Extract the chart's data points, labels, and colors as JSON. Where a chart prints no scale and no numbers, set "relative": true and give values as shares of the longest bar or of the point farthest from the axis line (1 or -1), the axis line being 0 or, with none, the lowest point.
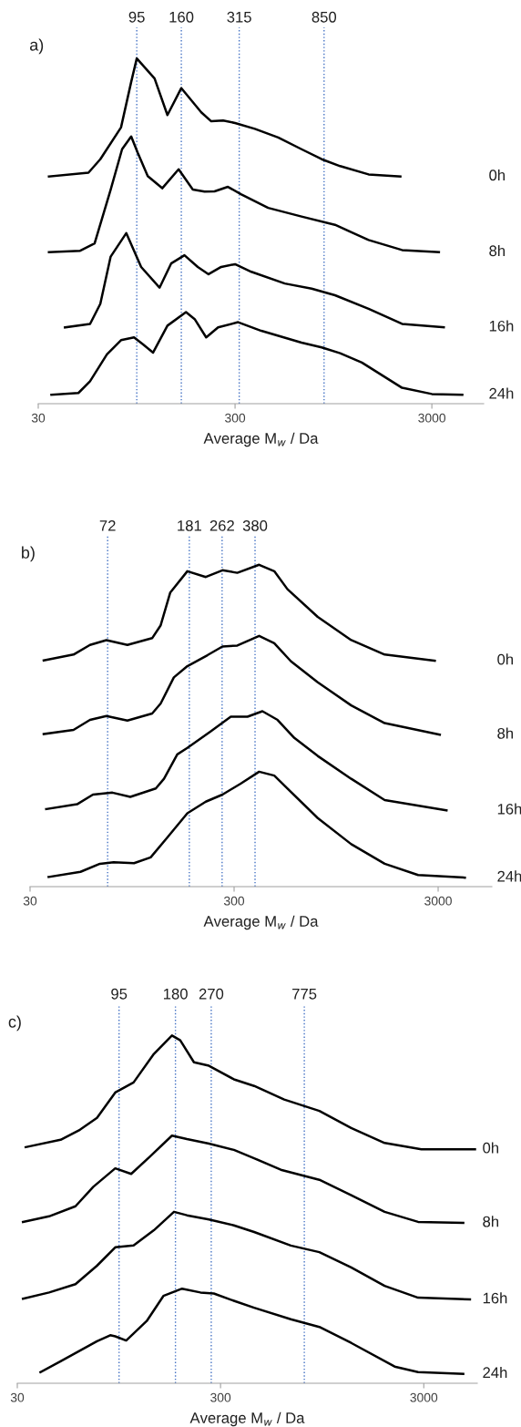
{
  "chart_data": [
    {
      "type": "line",
      "title": "a)",
      "xlabel": "Average M$_{w}$ / Da",
      "log": "x",
      "relative": true,
      "xlim": [
        30,
        5500
      ],
      "xticks": [
        30,
        300,
        3000
      ],
      "grid": false,
      "legend": false,
      "marker": "none",
      "line_style": "solid",
      "ref_lines": [
        {
          "axis": "x",
          "value": 95,
          "label": "95",
          "color": "#4472c4",
          "line_style": "dotted"
        },
        {
          "axis": "x",
          "value": 160,
          "label": "160",
          "color": "#4472c4",
          "line_style": "dotted"
        },
        {
          "axis": "x",
          "value": 315,
          "label": "315",
          "color": "#4472c4",
          "line_style": "dotted"
        },
        {
          "axis": "x",
          "value": 850,
          "label": "850",
          "color": "#4472c4",
          "line_style": "dotted"
        }
      ],
      "series": [
        {
          "name": "0h",
          "color": "#000000",
          "x": [
            34,
            54,
            62,
            79,
            89,
            95,
            117,
            136,
            160,
            202,
            227,
            261,
            300,
            378,
            497,
            653,
            827,
            1026,
            1431,
            2076
          ],
          "values": [
            0.658,
            0.669,
            0.708,
            0.8,
            0.932,
            1.0,
            0.942,
            0.836,
            0.914,
            0.844,
            0.818,
            0.82,
            0.813,
            0.796,
            0.771,
            0.737,
            0.708,
            0.688,
            0.664,
            0.658
          ]
        },
        {
          "name": "8h",
          "color": "#000000",
          "x": [
            34,
            49,
            58,
            70,
            80,
            89,
            96,
            108,
            128,
            155,
            183,
            210,
            236,
            276,
            323,
            442,
            653,
            966,
            1431,
            2118,
            3258
          ],
          "values": [
            0.439,
            0.443,
            0.464,
            0.62,
            0.737,
            0.774,
            0.727,
            0.659,
            0.624,
            0.679,
            0.62,
            0.614,
            0.615,
            0.628,
            0.606,
            0.567,
            0.542,
            0.518,
            0.474,
            0.445,
            0.439
          ]
        },
        {
          "name": "16h",
          "color": "#000000",
          "x": [
            41,
            55,
            62,
            70,
            84,
            100,
            124,
            142,
            166,
            194,
            220,
            255,
            300,
            363,
            537,
            735,
            966,
            1431,
            2118,
            3450
          ],
          "values": [
            0.221,
            0.231,
            0.289,
            0.426,
            0.494,
            0.396,
            0.336,
            0.406,
            0.43,
            0.396,
            0.375,
            0.396,
            0.404,
            0.382,
            0.348,
            0.333,
            0.314,
            0.275,
            0.231,
            0.221
          ]
        },
        {
          "name": "24h",
          "color": "#000000",
          "x": [
            35,
            48,
            55,
            67,
            79,
            92,
            102,
            115,
            136,
            169,
            187,
            214,
            246,
            311,
            408,
            653,
            827,
            1026,
            1323,
            2118,
            3000,
            4284
          ],
          "values": [
            0.026,
            0.031,
            0.065,
            0.143,
            0.184,
            0.192,
            0.172,
            0.148,
            0.226,
            0.265,
            0.245,
            0.192,
            0.221,
            0.236,
            0.211,
            0.177,
            0.163,
            0.146,
            0.119,
            0.046,
            0.028,
            0.026
          ]
        }
      ]
    },
    {
      "type": "line",
      "title": "b)",
      "xlabel": "Average M$_{w}$ / Da",
      "log": "x",
      "relative": true,
      "xlim": [
        30,
        5500
      ],
      "xticks": [
        30,
        300,
        3000
      ],
      "grid": false,
      "legend": false,
      "marker": "none",
      "line_style": "solid",
      "ref_lines": [
        {
          "axis": "x",
          "value": 72,
          "label": "72",
          "color": "#4472c4",
          "line_style": "dotted"
        },
        {
          "axis": "x",
          "value": 181,
          "label": "181",
          "color": "#4472c4",
          "line_style": "dotted"
        },
        {
          "axis": "x",
          "value": 262,
          "label": "262",
          "color": "#4472c4",
          "line_style": "dotted"
        },
        {
          "axis": "x",
          "value": 380,
          "label": "380",
          "color": "#4472c4",
          "line_style": "dotted"
        }
      ],
      "series": [
        {
          "name": "0h",
          "color": "#000000",
          "x": [
            35,
            49,
            59,
            71,
            90,
            119,
            131,
            146,
            177,
            218,
            263,
            311,
            398,
            472,
            548,
            771,
            1125,
            1641,
            2889
          ],
          "values": [
            0.703,
            0.721,
            0.751,
            0.766,
            0.751,
            0.772,
            0.812,
            0.914,
            0.98,
            0.962,
            0.983,
            0.975,
            1.0,
            0.98,
            0.924,
            0.838,
            0.766,
            0.721,
            0.702
          ]
        },
        {
          "name": "8h",
          "color": "#000000",
          "x": [
            35,
            49,
            59,
            71,
            90,
            119,
            131,
            152,
            177,
            222,
            263,
            311,
            398,
            472,
            570,
            771,
            1125,
            1641,
            3057
          ],
          "values": [
            0.474,
            0.487,
            0.518,
            0.53,
            0.516,
            0.538,
            0.569,
            0.65,
            0.685,
            0.719,
            0.746,
            0.749,
            0.779,
            0.756,
            0.7,
            0.635,
            0.563,
            0.508,
            0.472
          ]
        },
        {
          "name": "16h",
          "color": "#000000",
          "x": [
            36,
            51,
            61,
            76,
            93,
            124,
            136,
            158,
            177,
            230,
            289,
            349,
            413,
            490,
            592,
            771,
            1125,
            1641,
            3297
          ],
          "values": [
            0.241,
            0.256,
            0.286,
            0.292,
            0.279,
            0.305,
            0.335,
            0.411,
            0.431,
            0.482,
            0.528,
            0.528,
            0.545,
            0.518,
            0.462,
            0.406,
            0.335,
            0.269,
            0.237
          ]
        },
        {
          "name": "24h",
          "color": "#000000",
          "x": [
            37,
            53,
            66,
            77,
            97,
            117,
            141,
            177,
            218,
            263,
            323,
            398,
            472,
            570,
            771,
            1125,
            1641,
            2392,
            4056
          ],
          "values": [
            0.03,
            0.046,
            0.071,
            0.076,
            0.073,
            0.091,
            0.152,
            0.228,
            0.264,
            0.286,
            0.32,
            0.357,
            0.345,
            0.294,
            0.213,
            0.132,
            0.071,
            0.036,
            0.028
          ]
        }
      ]
    },
    {
      "type": "line",
      "title": "c)",
      "xlabel": "Average M$_{w}$ / Da",
      "log": "x",
      "relative": true,
      "xlim": [
        30,
        5500
      ],
      "xticks": [
        30,
        300,
        3000
      ],
      "grid": false,
      "legend": false,
      "marker": "none",
      "line_style": "solid",
      "ref_lines": [
        {
          "axis": "x",
          "value": 95,
          "label": "95",
          "color": "#4472c4",
          "line_style": "dotted"
        },
        {
          "axis": "x",
          "value": 180,
          "label": "180",
          "color": "#4472c4",
          "line_style": "dotted"
        },
        {
          "axis": "x",
          "value": 270,
          "label": "270",
          "color": "#4472c4",
          "line_style": "dotted"
        },
        {
          "axis": "x",
          "value": 775,
          "label": "775",
          "color": "#4472c4",
          "line_style": "dotted"
        }
      ],
      "series": [
        {
          "name": "0h",
          "color": "#000000",
          "x": [
            33,
            49,
            61,
            74,
            91,
            112,
            141,
            173,
            190,
            222,
            263,
            349,
            439,
            617,
            919,
            1318,
            1925,
            2920,
            5358
          ],
          "values": [
            0.679,
            0.7,
            0.729,
            0.763,
            0.836,
            0.865,
            0.947,
            1.0,
            0.986,
            0.923,
            0.913,
            0.874,
            0.855,
            0.816,
            0.783,
            0.734,
            0.691,
            0.673,
            0.673
          ]
        },
        {
          "name": "8h",
          "color": "#000000",
          "x": [
            32,
            43,
            58,
            71,
            91,
            109,
            135,
            173,
            205,
            263,
            349,
            439,
            594,
            919,
            1318,
            1925,
            2813,
            4692
          ],
          "values": [
            0.464,
            0.48,
            0.509,
            0.565,
            0.618,
            0.602,
            0.652,
            0.712,
            0.702,
            0.689,
            0.671,
            0.647,
            0.614,
            0.585,
            0.541,
            0.493,
            0.464,
            0.461
          ]
        },
        {
          "name": "16h",
          "color": "#000000",
          "x": [
            32,
            43,
            58,
            74,
            91,
            112,
            141,
            177,
            205,
            263,
            349,
            439,
            665,
            919,
            1318,
            1925,
            2813,
            5061
          ],
          "values": [
            0.243,
            0.261,
            0.285,
            0.338,
            0.391,
            0.396,
            0.44,
            0.493,
            0.483,
            0.471,
            0.454,
            0.435,
            0.396,
            0.377,
            0.333,
            0.28,
            0.246,
            0.241
          ]
        },
        {
          "name": "24h",
          "color": "#000000",
          "x": [
            39,
            49,
            74,
            86,
            91,
            103,
            130,
            157,
            194,
            239,
            278,
            349,
            439,
            665,
            919,
            1318,
            2157,
            2813,
            4692
          ],
          "values": [
            0.032,
            0.063,
            0.121,
            0.138,
            0.135,
            0.123,
            0.179,
            0.251,
            0.272,
            0.261,
            0.258,
            0.237,
            0.217,
            0.184,
            0.162,
            0.116,
            0.048,
            0.032,
            0.027
          ]
        }
      ]
    }
  ]
}
